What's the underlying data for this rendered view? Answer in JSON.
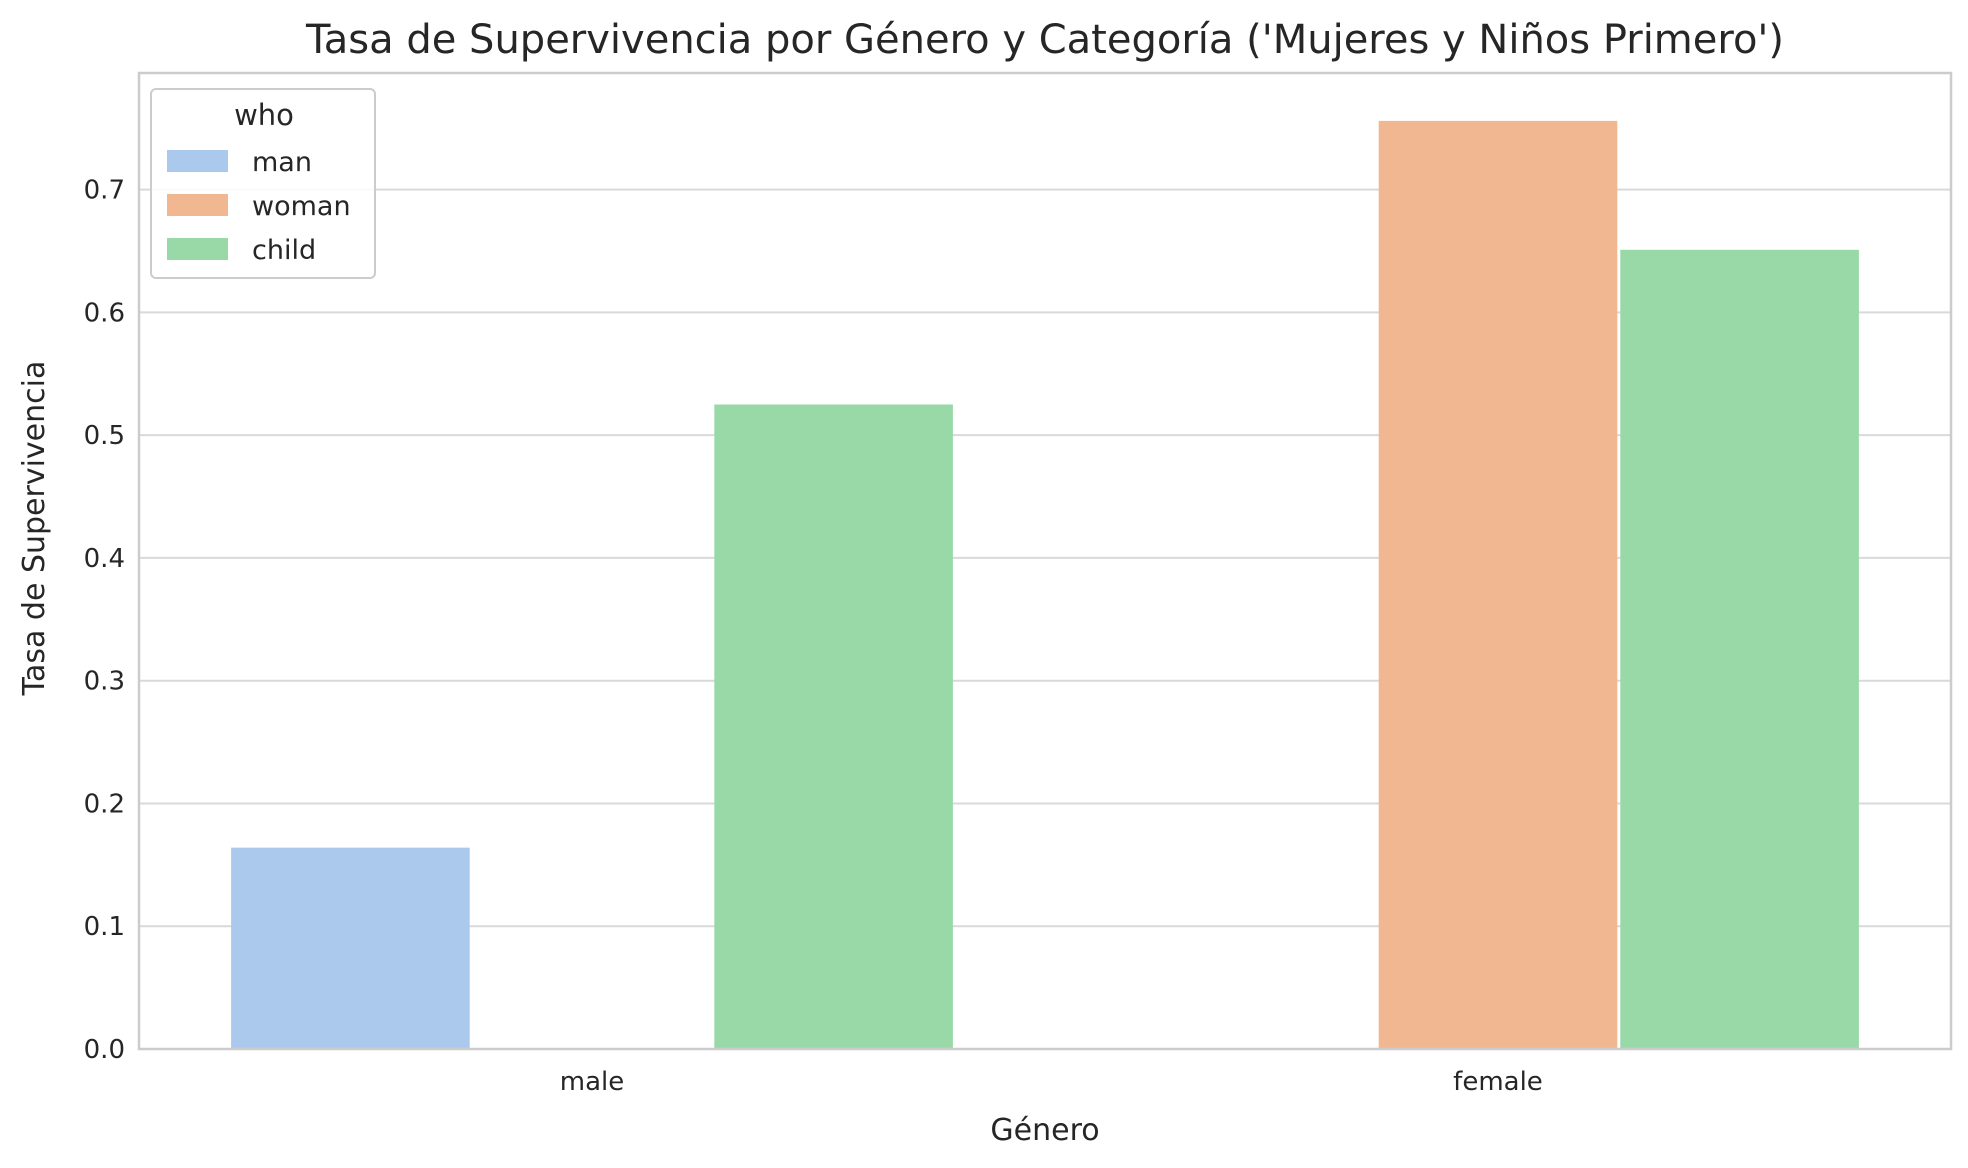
{
  "chart_data": {
    "type": "bar",
    "title": "Tasa de Supervivencia por Género y Categoría ('Mujeres y Niños Primero')",
    "xlabel": "Género",
    "ylabel": "Tasa de Supervivencia",
    "categories": [
      "male",
      "female"
    ],
    "ylim": [
      0,
      0.795
    ],
    "yticks": [
      "0.0",
      "0.1",
      "0.2",
      "0.3",
      "0.4",
      "0.5",
      "0.6",
      "0.7"
    ],
    "grid": true,
    "legend": {
      "title": "who",
      "placement": "top-left"
    },
    "series": [
      {
        "name": "man",
        "color": "#abc9ed",
        "values": [
          0.164,
          null
        ]
      },
      {
        "name": "woman",
        "color": "#f0b791",
        "values": [
          null,
          0.756
        ]
      },
      {
        "name": "child",
        "color": "#99d9a8",
        "values": [
          0.525,
          0.651
        ]
      }
    ]
  }
}
